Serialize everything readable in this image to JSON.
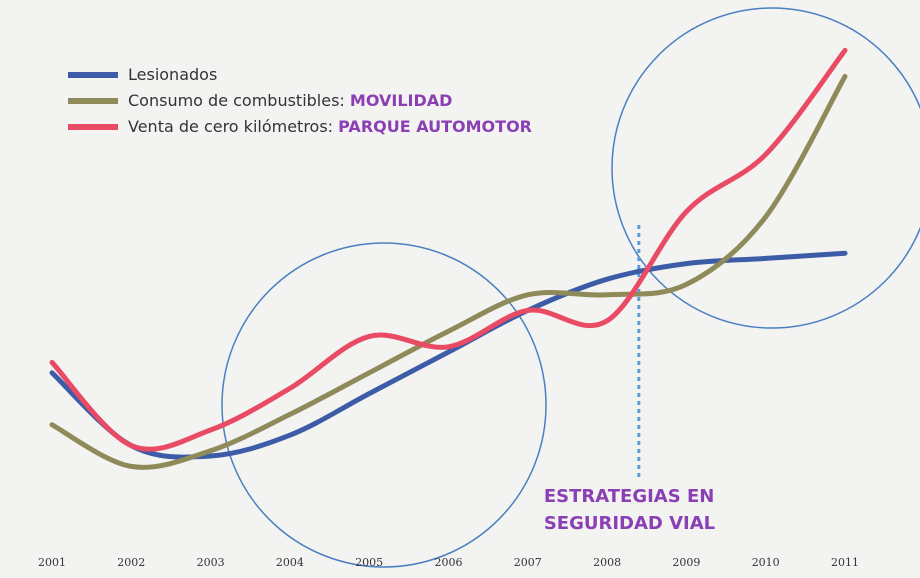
{
  "chart_data": {
    "type": "line",
    "x": [
      2001,
      2002,
      2003,
      2004,
      2005,
      2006,
      2007,
      2008,
      2009,
      2010,
      2011
    ],
    "xlim": [
      2001,
      2011
    ],
    "ylim": [
      0,
      100
    ],
    "series": [
      {
        "name": "Lesionados",
        "color": "#3d5ca8",
        "values": [
          36,
          22,
          20,
          24,
          32,
          40,
          48,
          54,
          57,
          58,
          59
        ]
      },
      {
        "name": "Consumo de combustibles:",
        "tag": "MOVILIDAD",
        "color": "#8f8a5a",
        "values": [
          26,
          18,
          21,
          28,
          36,
          44,
          51,
          51,
          53,
          66,
          93
        ]
      },
      {
        "name": "Venta de cero kilómetros:",
        "tag": "PARQUE AUTOMOTOR",
        "color": "#e94a64",
        "values": [
          38,
          22,
          25,
          33,
          43,
          41,
          48,
          46,
          67,
          78,
          98
        ]
      }
    ],
    "marker_x": 2008.4,
    "annotation": [
      "ESTRATEGIAS EN",
      "SEGURIDAD VIAL"
    ]
  }
}
